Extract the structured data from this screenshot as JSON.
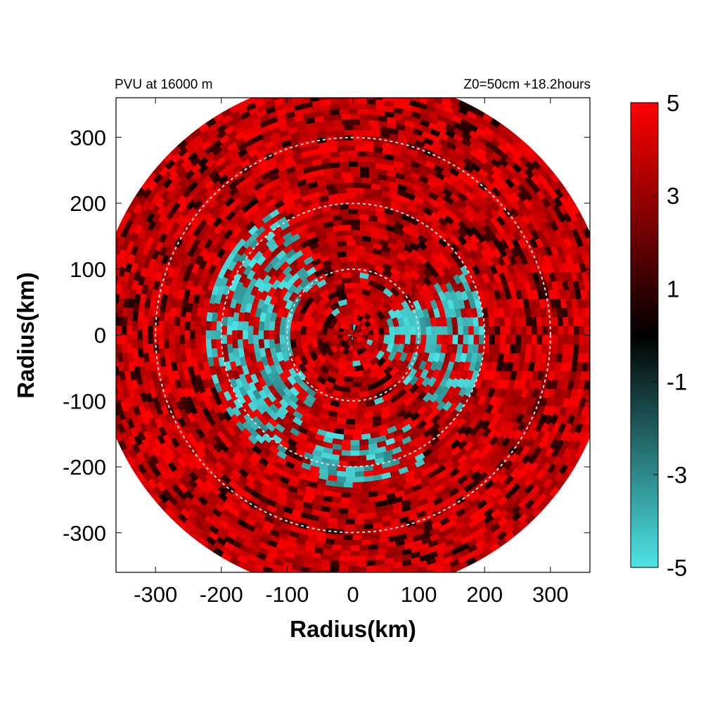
{
  "chart_data": {
    "type": "heatmap",
    "title_left": "PVU at 16000 m",
    "title_right": "Z0=50cm  +18.2hours",
    "xlabel": "Radius(km)",
    "ylabel": "Radius(km)",
    "xlim": [
      -360,
      360
    ],
    "ylim": [
      -360,
      360
    ],
    "x_ticks": [
      -300,
      -200,
      -100,
      0,
      100,
      200,
      300
    ],
    "y_ticks": [
      300,
      200,
      100,
      0,
      -100,
      -200,
      -300
    ],
    "data_domain_radius_km": 390,
    "reference_circles_km": [
      100,
      200,
      300
    ],
    "colorbar": {
      "range": [
        -5,
        5
      ],
      "ticks": [
        5,
        3,
        1,
        -1,
        -3,
        -5
      ],
      "colors": {
        "low": "#4de4e6",
        "mid": "#000000",
        "high": "#ff0000"
      }
    },
    "field_description_regions": [
      {
        "label": "negative PV band",
        "r_km": [
          60,
          200
        ],
        "theta_deg": [
          -40,
          30
        ]
      },
      {
        "label": "negative PV patches",
        "r_km": [
          100,
          220
        ],
        "theta_deg": [
          120,
          240
        ]
      },
      {
        "label": "negative PV patches",
        "r_km": [
          150,
          230
        ],
        "theta_deg": [
          250,
          300
        ]
      }
    ]
  }
}
